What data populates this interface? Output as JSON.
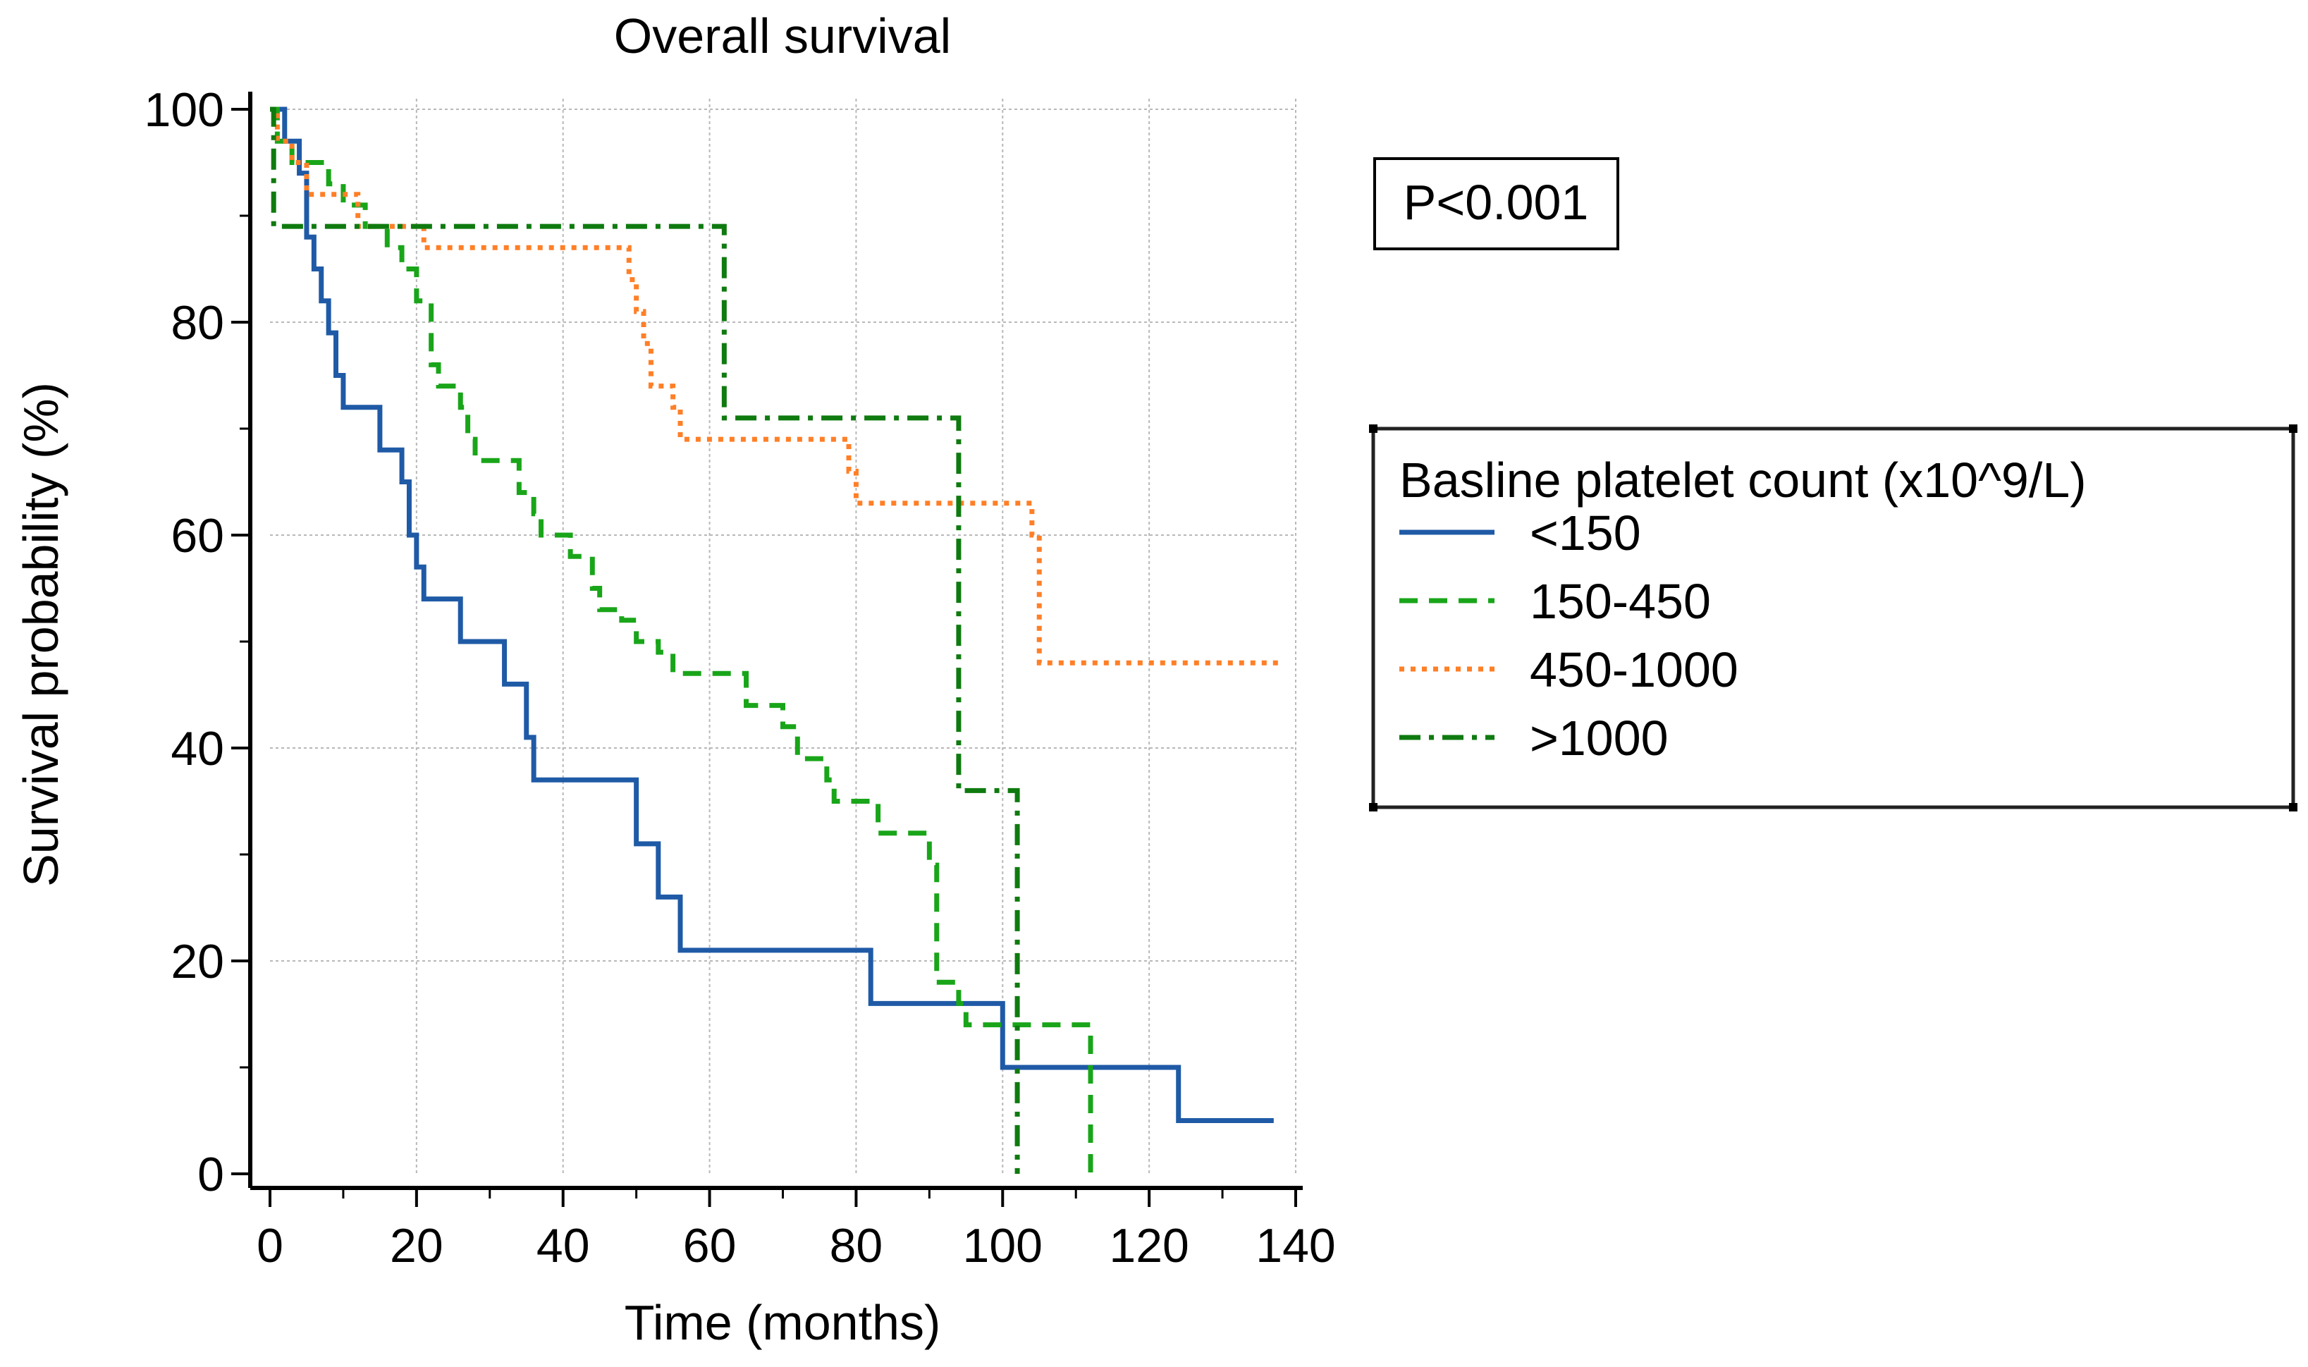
{
  "chart_data": {
    "type": "line",
    "subtype": "kaplan-meier step",
    "title": "Overall survival",
    "xlabel": "Time (months)",
    "ylabel": "Survival probability (%)",
    "xlim": [
      0,
      140
    ],
    "ylim": [
      0,
      100
    ],
    "xticks": [
      0,
      20,
      40,
      60,
      80,
      100,
      120,
      140
    ],
    "yticks": [
      0,
      20,
      40,
      60,
      80,
      100
    ],
    "grid": true,
    "annotation": "P<0.001",
    "legend": {
      "title": "Basline platelet count (x10^9/L)",
      "placement": "right"
    },
    "series": [
      {
        "name": "<150",
        "color": "#1f5aa6",
        "style": "solid",
        "points": [
          [
            0,
            100
          ],
          [
            2,
            97
          ],
          [
            4,
            94
          ],
          [
            5,
            88
          ],
          [
            6,
            85
          ],
          [
            7,
            82
          ],
          [
            8,
            79
          ],
          [
            9,
            75
          ],
          [
            10,
            72
          ],
          [
            15,
            68
          ],
          [
            18,
            65
          ],
          [
            19,
            60
          ],
          [
            20,
            57
          ],
          [
            21,
            54
          ],
          [
            26,
            50
          ],
          [
            32,
            46
          ],
          [
            35,
            41
          ],
          [
            36,
            37
          ],
          [
            50,
            31
          ],
          [
            53,
            26
          ],
          [
            56,
            21
          ],
          [
            82,
            16
          ],
          [
            100,
            10
          ],
          [
            124,
            5
          ],
          [
            137,
            5
          ]
        ]
      },
      {
        "name": "150-450",
        "color": "#19a519",
        "style": "dashed",
        "points": [
          [
            0,
            100
          ],
          [
            1,
            97
          ],
          [
            3,
            95
          ],
          [
            8,
            93
          ],
          [
            10,
            91
          ],
          [
            13,
            89
          ],
          [
            16,
            87
          ],
          [
            18,
            85
          ],
          [
            20,
            82
          ],
          [
            22,
            79
          ],
          [
            22,
            76
          ],
          [
            23,
            74
          ],
          [
            26,
            72
          ],
          [
            27,
            69
          ],
          [
            28,
            67
          ],
          [
            32,
            67
          ],
          [
            34,
            64
          ],
          [
            36,
            62
          ],
          [
            37,
            60
          ],
          [
            41,
            58
          ],
          [
            44,
            55
          ],
          [
            45,
            53
          ],
          [
            48,
            52
          ],
          [
            50,
            50
          ],
          [
            53,
            49
          ],
          [
            55,
            47
          ],
          [
            63,
            47
          ],
          [
            65,
            44
          ],
          [
            70,
            42
          ],
          [
            72,
            39
          ],
          [
            76,
            37
          ],
          [
            77,
            35
          ],
          [
            83,
            32
          ],
          [
            90,
            29
          ],
          [
            91,
            18
          ],
          [
            94,
            16
          ],
          [
            95,
            14
          ],
          [
            111,
            14
          ],
          [
            112,
            0
          ]
        ]
      },
      {
        "name": "450-1000",
        "color": "#ff7f27",
        "style": "dotted",
        "points": [
          [
            0,
            100
          ],
          [
            1,
            97
          ],
          [
            3,
            95
          ],
          [
            5,
            92
          ],
          [
            12,
            89
          ],
          [
            21,
            87
          ],
          [
            49,
            84
          ],
          [
            50,
            81
          ],
          [
            51,
            78
          ],
          [
            52,
            74
          ],
          [
            55,
            72
          ],
          [
            56,
            69
          ],
          [
            79,
            66
          ],
          [
            80,
            63
          ],
          [
            104,
            60
          ],
          [
            105,
            48
          ],
          [
            138,
            48
          ]
        ]
      },
      {
        "name": ">1000",
        "color": "#0f7a0f",
        "style": "dashdot",
        "points": [
          [
            0,
            100
          ],
          [
            0.5,
            89
          ],
          [
            61,
            89
          ],
          [
            62,
            71
          ],
          [
            93,
            71
          ],
          [
            94,
            36
          ],
          [
            101,
            36
          ],
          [
            102,
            0
          ]
        ]
      }
    ]
  }
}
